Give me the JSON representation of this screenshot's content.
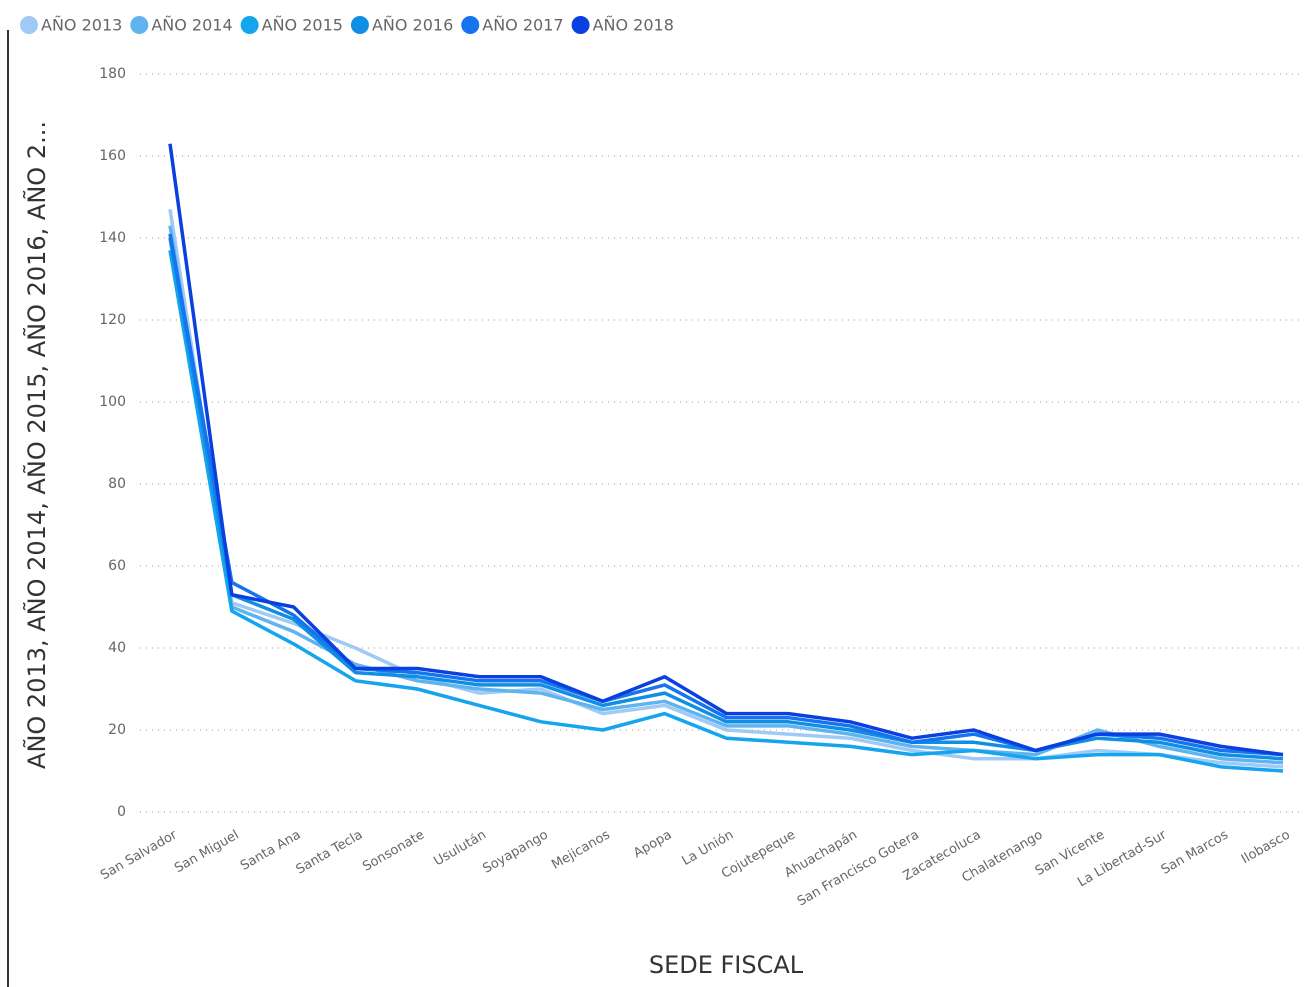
{
  "chart_data": {
    "type": "line",
    "y_label": "AÑO 2013, AÑO 2014, AÑO 2015, AÑO 2016, AÑO 2...",
    "x_label": "SEDE FISCAL",
    "categories": [
      "San Salvador",
      "San Miguel",
      "Santa Ana",
      "Santa Tecla",
      "Sonsonate",
      "Usulután",
      "Soyapango",
      "Mejicanos",
      "Apopa",
      "La Unión",
      "Cojutepeque",
      "Ahuachapán",
      "San Francisco Gotera",
      "Zacatecoluca",
      "Chalatenango",
      "San Vicente",
      "La Libertad-Sur",
      "San Marcos",
      "Ilobasco"
    ],
    "series": [
      {
        "name": "AÑO 2013",
        "color": "#9ecaf5",
        "values": [
          147,
          51,
          46,
          40,
          33,
          29,
          30,
          24,
          26,
          20,
          19,
          18,
          15,
          13,
          13,
          15,
          14,
          12,
          11
        ]
      },
      {
        "name": "AÑO 2014",
        "color": "#5fb4f0",
        "values": [
          143,
          50,
          44,
          36,
          32,
          30,
          29,
          25,
          27,
          21,
          21,
          19,
          16,
          15,
          14,
          20,
          16,
          13,
          12
        ]
      },
      {
        "name": "AÑO 2015",
        "color": "#14a5ee",
        "values": [
          137,
          49,
          41,
          32,
          30,
          26,
          22,
          20,
          24,
          18,
          17,
          16,
          14,
          15,
          13,
          14,
          14,
          11,
          10
        ]
      },
      {
        "name": "AÑO 2016",
        "color": "#0f8ee4",
        "values": [
          140,
          53,
          47,
          34,
          33,
          31,
          31,
          26,
          29,
          22,
          22,
          20,
          17,
          17,
          15,
          18,
          17,
          14,
          13
        ]
      },
      {
        "name": "AÑO 2017",
        "color": "#1574ee",
        "values": [
          141,
          56,
          48,
          35,
          34,
          32,
          32,
          27,
          31,
          23,
          23,
          21,
          17,
          19,
          15,
          19,
          18,
          15,
          14
        ]
      },
      {
        "name": "AÑO 2018",
        "color": "#0a3fe0",
        "values": [
          163,
          53,
          50,
          35,
          35,
          33,
          33,
          27,
          33,
          24,
          24,
          22,
          18,
          20,
          15,
          19,
          19,
          16,
          14
        ]
      }
    ],
    "ylim": [
      0,
      180
    ],
    "yticks": [
      0,
      20,
      40,
      60,
      80,
      100,
      120,
      140,
      160,
      180
    ],
    "grid": true,
    "legend": "top"
  }
}
